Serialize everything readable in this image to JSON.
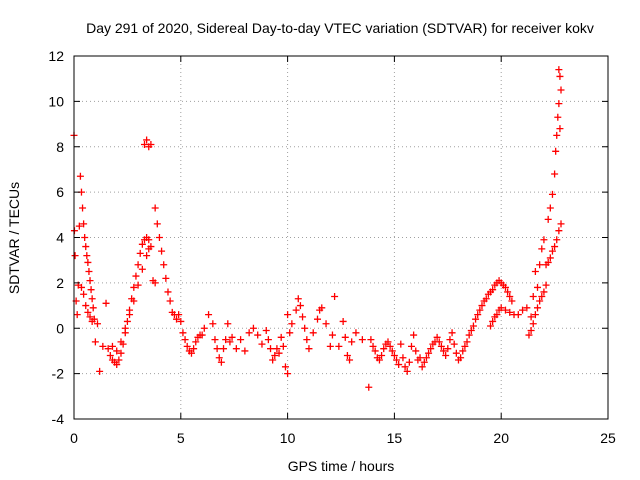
{
  "chart_data": {
    "type": "scatter",
    "title": "Day 291 of 2020, Sidereal Day-to-day VTEC variation (SDTVAR) for receiver kokv",
    "xlabel": "GPS time / hours",
    "ylabel": "SDTVAR / TECUs",
    "xlim": [
      0,
      25
    ],
    "ylim": [
      -4,
      12
    ],
    "xticks": [
      0,
      5,
      10,
      15,
      20,
      25
    ],
    "yticks": [
      -4,
      -2,
      0,
      2,
      4,
      6,
      8,
      10,
      12
    ],
    "xtick_labels": [
      "0",
      "5",
      "10",
      "15",
      "20",
      "25"
    ],
    "ytick_labels": [
      "-4",
      "-2",
      "0",
      "2",
      "4",
      "6",
      "8",
      "10",
      "12"
    ],
    "grid": true,
    "marker": "plus",
    "color": "#ff0000",
    "series": [
      {
        "name": "SDTVAR",
        "points": [
          [
            0.0,
            8.5
          ],
          [
            0.02,
            4.3
          ],
          [
            0.05,
            3.2
          ],
          [
            0.1,
            1.2
          ],
          [
            0.15,
            0.6
          ],
          [
            0.2,
            1.9
          ],
          [
            0.25,
            4.5
          ],
          [
            0.3,
            6.7
          ],
          [
            0.35,
            6.0
          ],
          [
            0.4,
            5.3
          ],
          [
            0.45,
            4.6
          ],
          [
            0.5,
            4.0
          ],
          [
            0.55,
            3.6
          ],
          [
            0.6,
            3.2
          ],
          [
            0.65,
            2.9
          ],
          [
            0.7,
            2.5
          ],
          [
            0.75,
            2.1
          ],
          [
            0.8,
            1.7
          ],
          [
            0.85,
            1.3
          ],
          [
            0.9,
            0.9
          ],
          [
            0.35,
            1.8
          ],
          [
            0.45,
            1.5
          ],
          [
            0.55,
            1.0
          ],
          [
            0.65,
            0.7
          ],
          [
            0.75,
            0.5
          ],
          [
            0.85,
            0.3
          ],
          [
            0.95,
            0.4
          ],
          [
            1.0,
            -0.6
          ],
          [
            1.1,
            0.2
          ],
          [
            1.2,
            -1.9
          ],
          [
            1.35,
            -0.8
          ],
          [
            1.5,
            1.1
          ],
          [
            1.6,
            -0.9
          ],
          [
            1.7,
            -1.2
          ],
          [
            1.8,
            -1.4
          ],
          [
            1.9,
            -1.5
          ],
          [
            2.0,
            -1.6
          ],
          [
            2.1,
            -1.4
          ],
          [
            2.2,
            -1.1
          ],
          [
            2.3,
            -0.7
          ],
          [
            2.4,
            -0.2
          ],
          [
            2.5,
            0.3
          ],
          [
            2.6,
            0.8
          ],
          [
            2.7,
            1.3
          ],
          [
            2.8,
            1.8
          ],
          [
            2.9,
            2.3
          ],
          [
            3.0,
            2.8
          ],
          [
            3.1,
            3.3
          ],
          [
            3.2,
            3.7
          ],
          [
            3.3,
            3.9
          ],
          [
            3.4,
            4.0
          ],
          [
            3.5,
            3.9
          ],
          [
            3.6,
            3.6
          ],
          [
            1.8,
            -0.8
          ],
          [
            2.0,
            -1.0
          ],
          [
            2.2,
            -0.6
          ],
          [
            2.4,
            0.0
          ],
          [
            2.6,
            0.6
          ],
          [
            2.8,
            1.2
          ],
          [
            3.0,
            1.9
          ],
          [
            3.2,
            2.6
          ],
          [
            3.4,
            3.2
          ],
          [
            3.5,
            3.5
          ],
          [
            3.3,
            8.1
          ],
          [
            3.4,
            8.3
          ],
          [
            3.5,
            8.0
          ],
          [
            3.6,
            8.1
          ],
          [
            3.7,
            2.1
          ],
          [
            3.8,
            2.0
          ],
          [
            3.8,
            5.3
          ],
          [
            3.9,
            4.6
          ],
          [
            4.0,
            4.0
          ],
          [
            4.1,
            3.4
          ],
          [
            4.2,
            2.8
          ],
          [
            4.3,
            2.2
          ],
          [
            4.4,
            1.6
          ],
          [
            4.5,
            1.2
          ],
          [
            4.6,
            0.7
          ],
          [
            4.7,
            0.6
          ],
          [
            4.8,
            0.4
          ],
          [
            4.9,
            0.6
          ],
          [
            5.0,
            0.3
          ],
          [
            5.1,
            -0.2
          ],
          [
            5.2,
            -0.5
          ],
          [
            5.3,
            -0.8
          ],
          [
            5.4,
            -1.0
          ],
          [
            5.5,
            -1.1
          ],
          [
            5.6,
            -0.9
          ],
          [
            5.7,
            -0.6
          ],
          [
            5.8,
            -0.4
          ],
          [
            5.9,
            -0.3
          ],
          [
            6.0,
            -0.3
          ],
          [
            6.1,
            0.0
          ],
          [
            6.3,
            0.6
          ],
          [
            6.5,
            0.2
          ],
          [
            6.6,
            -0.5
          ],
          [
            6.7,
            -0.9
          ],
          [
            6.8,
            -1.3
          ],
          [
            6.9,
            -1.5
          ],
          [
            7.0,
            -0.9
          ],
          [
            7.1,
            -0.5
          ],
          [
            7.2,
            0.2
          ],
          [
            7.3,
            -0.6
          ],
          [
            7.4,
            -0.4
          ],
          [
            7.6,
            -0.9
          ],
          [
            7.8,
            -0.5
          ],
          [
            8.0,
            -1.0
          ],
          [
            8.2,
            -0.2
          ],
          [
            8.4,
            0.0
          ],
          [
            8.6,
            -0.3
          ],
          [
            8.8,
            -0.7
          ],
          [
            9.0,
            -0.1
          ],
          [
            9.1,
            -0.5
          ],
          [
            9.2,
            -0.9
          ],
          [
            9.3,
            -1.4
          ],
          [
            9.4,
            -1.2
          ],
          [
            9.5,
            -0.9
          ],
          [
            9.6,
            -1.1
          ],
          [
            9.7,
            -0.4
          ],
          [
            9.8,
            -0.8
          ],
          [
            9.9,
            -1.7
          ],
          [
            10.0,
            -2.0
          ],
          [
            10.0,
            0.6
          ],
          [
            10.1,
            -0.2
          ],
          [
            10.2,
            0.2
          ],
          [
            10.4,
            0.8
          ],
          [
            10.5,
            1.3
          ],
          [
            10.6,
            1.0
          ],
          [
            10.7,
            0.5
          ],
          [
            10.8,
            0.0
          ],
          [
            10.9,
            -0.5
          ],
          [
            11.0,
            -0.9
          ],
          [
            11.2,
            -0.2
          ],
          [
            11.4,
            0.4
          ],
          [
            11.5,
            0.8
          ],
          [
            11.6,
            0.9
          ],
          [
            11.8,
            0.2
          ],
          [
            12.0,
            -0.8
          ],
          [
            12.1,
            -0.3
          ],
          [
            12.2,
            1.4
          ],
          [
            12.4,
            -0.8
          ],
          [
            12.6,
            0.3
          ],
          [
            12.7,
            -0.4
          ],
          [
            12.8,
            -1.2
          ],
          [
            12.9,
            -1.4
          ],
          [
            13.0,
            -0.6
          ],
          [
            13.2,
            -0.2
          ],
          [
            13.5,
            -0.5
          ],
          [
            13.8,
            -2.6
          ],
          [
            13.9,
            -0.5
          ],
          [
            14.0,
            -0.8
          ],
          [
            14.1,
            -1.0
          ],
          [
            14.2,
            -1.3
          ],
          [
            14.3,
            -1.4
          ],
          [
            14.4,
            -1.2
          ],
          [
            14.5,
            -0.9
          ],
          [
            14.6,
            -0.7
          ],
          [
            14.7,
            -0.6
          ],
          [
            14.8,
            -0.8
          ],
          [
            14.9,
            -1.0
          ],
          [
            15.0,
            -1.2
          ],
          [
            15.1,
            -1.4
          ],
          [
            15.2,
            -1.6
          ],
          [
            15.3,
            -0.7
          ],
          [
            15.4,
            -1.3
          ],
          [
            15.5,
            -1.7
          ],
          [
            15.6,
            -1.9
          ],
          [
            15.7,
            -1.5
          ],
          [
            15.8,
            -0.8
          ],
          [
            15.9,
            -0.3
          ],
          [
            16.0,
            -1.0
          ],
          [
            16.1,
            -1.4
          ],
          [
            16.2,
            -1.3
          ],
          [
            16.3,
            -1.7
          ],
          [
            16.4,
            -1.5
          ],
          [
            16.5,
            -1.3
          ],
          [
            16.6,
            -1.1
          ],
          [
            16.7,
            -0.9
          ],
          [
            16.8,
            -0.7
          ],
          [
            16.9,
            -0.6
          ],
          [
            17.0,
            -0.4
          ],
          [
            17.1,
            -0.6
          ],
          [
            17.2,
            -0.8
          ],
          [
            17.3,
            -1.0
          ],
          [
            17.4,
            -1.2
          ],
          [
            17.5,
            -0.9
          ],
          [
            17.6,
            -0.5
          ],
          [
            17.7,
            -0.2
          ],
          [
            17.8,
            -0.7
          ],
          [
            17.9,
            -1.1
          ],
          [
            18.0,
            -1.4
          ],
          [
            18.1,
            -1.3
          ],
          [
            18.2,
            -1.0
          ],
          [
            18.3,
            -0.8
          ],
          [
            18.4,
            -0.6
          ],
          [
            18.5,
            -0.3
          ],
          [
            18.6,
            -0.1
          ],
          [
            18.7,
            0.1
          ],
          [
            18.8,
            0.4
          ],
          [
            18.9,
            0.6
          ],
          [
            19.0,
            0.8
          ],
          [
            19.1,
            1.0
          ],
          [
            19.2,
            1.2
          ],
          [
            19.3,
            1.3
          ],
          [
            19.4,
            1.5
          ],
          [
            19.5,
            1.6
          ],
          [
            19.6,
            1.7
          ],
          [
            19.7,
            1.9
          ],
          [
            19.8,
            2.0
          ],
          [
            19.9,
            2.1
          ],
          [
            20.0,
            2.0
          ],
          [
            20.1,
            1.9
          ],
          [
            20.2,
            1.8
          ],
          [
            20.3,
            1.6
          ],
          [
            20.4,
            1.4
          ],
          [
            20.5,
            1.2
          ],
          [
            19.5,
            0.1
          ],
          [
            19.6,
            0.3
          ],
          [
            19.7,
            0.5
          ],
          [
            19.8,
            0.6
          ],
          [
            19.9,
            0.8
          ],
          [
            20.0,
            0.9
          ],
          [
            20.2,
            0.8
          ],
          [
            20.4,
            0.7
          ],
          [
            20.6,
            0.6
          ],
          [
            20.8,
            0.6
          ],
          [
            21.0,
            0.8
          ],
          [
            21.2,
            0.9
          ],
          [
            21.3,
            -0.3
          ],
          [
            21.4,
            0.5
          ],
          [
            21.5,
            1.4
          ],
          [
            21.6,
            2.5
          ],
          [
            21.7,
            1.8
          ],
          [
            21.8,
            2.8
          ],
          [
            21.9,
            3.5
          ],
          [
            22.0,
            3.9
          ],
          [
            22.1,
            2.8
          ],
          [
            22.2,
            4.8
          ],
          [
            22.3,
            5.3
          ],
          [
            22.4,
            5.9
          ],
          [
            22.5,
            6.8
          ],
          [
            22.55,
            7.8
          ],
          [
            22.6,
            8.5
          ],
          [
            22.65,
            9.3
          ],
          [
            22.7,
            9.9
          ],
          [
            22.75,
            8.8
          ],
          [
            22.7,
            11.4
          ],
          [
            22.75,
            11.1
          ],
          [
            22.8,
            10.5
          ],
          [
            22.8,
            4.6
          ],
          [
            22.7,
            4.3
          ],
          [
            22.6,
            3.9
          ],
          [
            22.5,
            3.6
          ],
          [
            22.4,
            3.4
          ],
          [
            22.3,
            3.1
          ],
          [
            22.2,
            2.9
          ],
          [
            22.1,
            1.9
          ],
          [
            22.0,
            1.6
          ],
          [
            21.9,
            1.4
          ],
          [
            21.8,
            1.2
          ],
          [
            21.7,
            0.9
          ],
          [
            21.6,
            0.6
          ],
          [
            21.5,
            0.2
          ],
          [
            21.4,
            -0.1
          ]
        ]
      }
    ]
  }
}
